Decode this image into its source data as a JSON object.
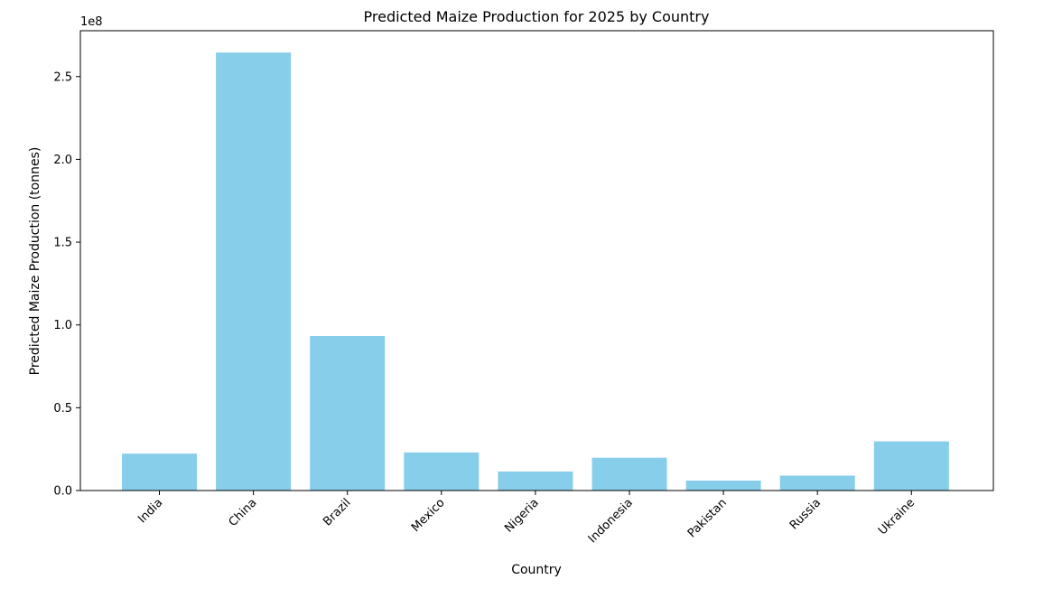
{
  "chart_data": {
    "type": "bar",
    "title": "Predicted Maize Production for 2025 by Country",
    "xlabel": "Country",
    "ylabel": "Predicted Maize Production (tonnes)",
    "y_offset_label": "1e8",
    "categories": [
      "India",
      "China",
      "Brazil",
      "Mexico",
      "Nigeria",
      "Indonesia",
      "Pakistan",
      "Russia",
      "Ukraine"
    ],
    "values": [
      22300000,
      264500000,
      93300000,
      23000000,
      11500000,
      19800000,
      6000000,
      9000000,
      29700000
    ],
    "ylim": [
      0,
      277700000
    ],
    "yticks": [
      0,
      50000000,
      100000000,
      150000000,
      200000000,
      250000000
    ],
    "ytick_labels": [
      "0.0",
      "0.5",
      "1.0",
      "1.5",
      "2.0",
      "2.5"
    ],
    "bar_color": "#87ceeb",
    "grid": false,
    "legend": false
  }
}
